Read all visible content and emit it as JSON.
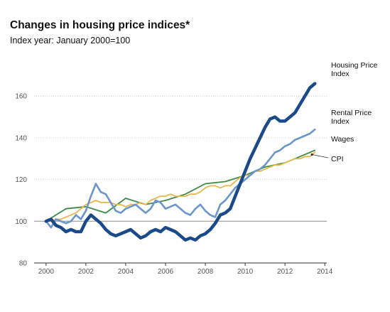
{
  "chart_data": {
    "type": "line",
    "title": "Changes in housing price indices*",
    "subtitle": "Index year: January 2000=100",
    "xlabel": "",
    "ylabel": "",
    "xlim": [
      1999.4,
      2014.1
    ],
    "ylim": [
      80,
      172
    ],
    "x_ticks": [
      2000,
      2002,
      2004,
      2006,
      2008,
      2010,
      2012,
      2014
    ],
    "y_ticks": [
      80,
      100,
      120,
      140,
      160
    ],
    "reference_line": 100,
    "grid": "horizontal-dotted",
    "series": [
      {
        "name": "Housing Price Index",
        "label_lines": [
          "Housing Price",
          "Index"
        ],
        "color": "#1b4a8a",
        "width": 4.5,
        "x": [
          2000.0,
          2000.25,
          2000.5,
          2000.75,
          2001.0,
          2001.25,
          2001.5,
          2001.75,
          2002.0,
          2002.25,
          2002.5,
          2002.75,
          2003.0,
          2003.25,
          2003.5,
          2003.75,
          2004.0,
          2004.25,
          2004.5,
          2004.75,
          2005.0,
          2005.25,
          2005.5,
          2005.75,
          2006.0,
          2006.25,
          2006.5,
          2006.75,
          2007.0,
          2007.25,
          2007.5,
          2007.75,
          2008.0,
          2008.25,
          2008.5,
          2008.75,
          2009.0,
          2009.25,
          2009.5,
          2009.75,
          2010.0,
          2010.25,
          2010.5,
          2010.75,
          2011.0,
          2011.25,
          2011.5,
          2011.75,
          2012.0,
          2012.25,
          2012.5,
          2012.75,
          2013.0,
          2013.25,
          2013.5
        ],
        "values": [
          100,
          101,
          98,
          97,
          95,
          96,
          95,
          95,
          100,
          103,
          101,
          99,
          96,
          94,
          93,
          94,
          95,
          96,
          94,
          92,
          93,
          95,
          96,
          95,
          97,
          96,
          95,
          93,
          91,
          92,
          91,
          93,
          94,
          96,
          99,
          103,
          104,
          106,
          112,
          118,
          124,
          130,
          135,
          140,
          145,
          149,
          150,
          148,
          148,
          150,
          152,
          156,
          160,
          164,
          166
        ]
      },
      {
        "name": "Rental Price Index",
        "label_lines": [
          "Rental Price",
          "Index"
        ],
        "color": "#6b95cb",
        "width": 2.6,
        "x": [
          2000.0,
          2000.25,
          2000.5,
          2000.75,
          2001.0,
          2001.25,
          2001.5,
          2001.75,
          2002.0,
          2002.25,
          2002.5,
          2002.75,
          2003.0,
          2003.25,
          2003.5,
          2003.75,
          2004.0,
          2004.25,
          2004.5,
          2004.75,
          2005.0,
          2005.25,
          2005.5,
          2005.75,
          2006.0,
          2006.25,
          2006.5,
          2006.75,
          2007.0,
          2007.25,
          2007.5,
          2007.75,
          2008.0,
          2008.25,
          2008.5,
          2008.75,
          2009.0,
          2009.25,
          2009.5,
          2009.75,
          2010.0,
          2010.25,
          2010.5,
          2010.75,
          2011.0,
          2011.25,
          2011.5,
          2011.75,
          2012.0,
          2012.25,
          2012.5,
          2012.75,
          2013.0,
          2013.25,
          2013.5
        ],
        "values": [
          100,
          97,
          101,
          100,
          99,
          100,
          103,
          101,
          105,
          112,
          118,
          114,
          113,
          109,
          105,
          104,
          106,
          107,
          108,
          106,
          104,
          106,
          110,
          109,
          106,
          107,
          108,
          106,
          104,
          103,
          106,
          108,
          105,
          103,
          102,
          108,
          110,
          113,
          116,
          118,
          120,
          122,
          124,
          125,
          127,
          130,
          133,
          134,
          136,
          137,
          139,
          140,
          141,
          142,
          144
        ]
      },
      {
        "name": "Wages",
        "label_lines": [
          "Wages"
        ],
        "color": "#3c8a46",
        "width": 1.8,
        "x": [
          2000.0,
          2001.0,
          2002.0,
          2003.0,
          2004.0,
          2005.0,
          2006.0,
          2007.0,
          2008.0,
          2009.0,
          2010.0,
          2011.0,
          2012.0,
          2013.0,
          2013.5
        ],
        "values": [
          100,
          106,
          107,
          104,
          111,
          108,
          110,
          113,
          118,
          119,
          122,
          126,
          128,
          132,
          134
        ]
      },
      {
        "name": "CPI",
        "label_lines": [
          "CPI"
        ],
        "color": "#e8b64a",
        "width": 1.8,
        "x": [
          2000.0,
          2000.25,
          2000.5,
          2000.75,
          2001.0,
          2001.25,
          2001.5,
          2001.75,
          2002.0,
          2002.25,
          2002.5,
          2002.75,
          2003.0,
          2003.25,
          2003.5,
          2003.75,
          2004.0,
          2004.25,
          2004.5,
          2004.75,
          2005.0,
          2005.25,
          2005.5,
          2005.75,
          2006.0,
          2006.25,
          2006.5,
          2006.75,
          2007.0,
          2007.25,
          2007.5,
          2007.75,
          2008.0,
          2008.25,
          2008.5,
          2008.75,
          2009.0,
          2009.25,
          2009.5,
          2009.75,
          2010.0,
          2010.25,
          2010.5,
          2010.75,
          2011.0,
          2011.25,
          2011.5,
          2011.75,
          2012.0,
          2012.25,
          2012.5,
          2012.75,
          2013.0,
          2013.25,
          2013.5
        ],
        "values": [
          100,
          100,
          101,
          101,
          102,
          103,
          104,
          106,
          108,
          109,
          110,
          109,
          109,
          109,
          108,
          108,
          107,
          108,
          108,
          109,
          108,
          110,
          111,
          112,
          112,
          113,
          112,
          112,
          112,
          113,
          113,
          114,
          116,
          117,
          117,
          116,
          117,
          117,
          119,
          121,
          122,
          122,
          124,
          124,
          125,
          126,
          127,
          127,
          128,
          129,
          130,
          130,
          131,
          131,
          133
        ]
      }
    ]
  }
}
